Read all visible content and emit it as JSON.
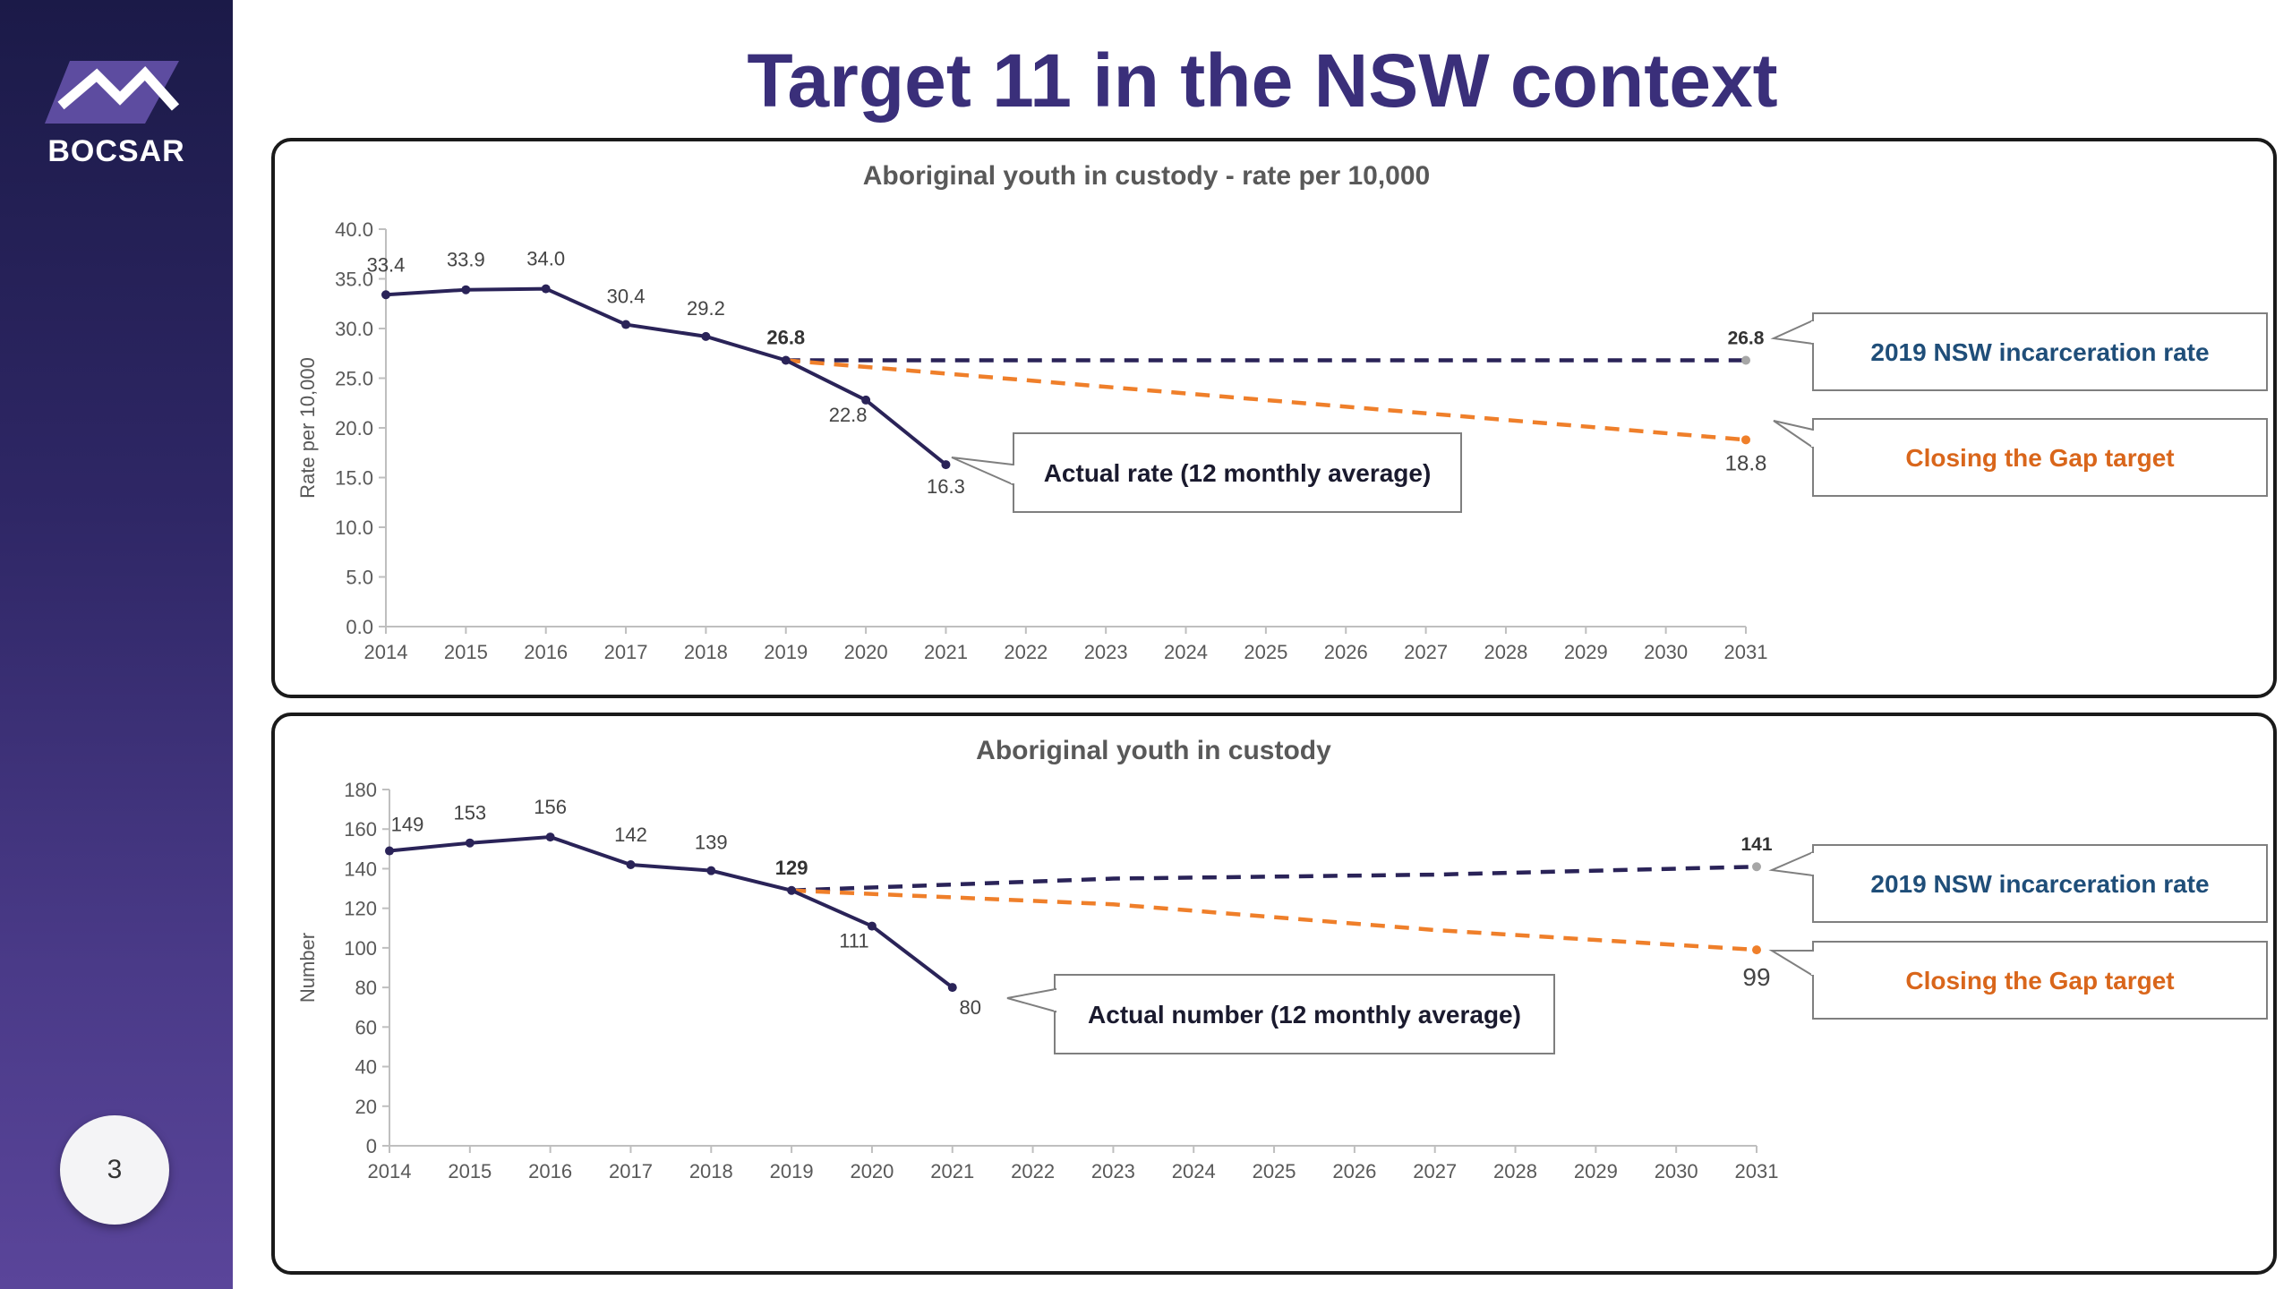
{
  "sidebar": {
    "logo_text": "BOCSAR",
    "page_number": "3"
  },
  "page_title": "Target 11 in the NSW context",
  "colors": {
    "actual": "#2a2358",
    "rate_2019": "#2a2358",
    "target": "#ef7f2a",
    "title": "#3a2f7a",
    "callout_blue": "#1f4e79",
    "callout_orange": "#d9661b"
  },
  "chart_data": [
    {
      "type": "line",
      "title": "Aboriginal youth in custody - rate per 10,000",
      "xlabel": "",
      "ylabel": "Rate per 10,000",
      "ylim": [
        0,
        40
      ],
      "yticks": [
        "0.0",
        "5.0",
        "10.0",
        "15.0",
        "20.0",
        "25.0",
        "30.0",
        "35.0",
        "40.0"
      ],
      "x": [
        2014,
        2015,
        2016,
        2017,
        2018,
        2019,
        2020,
        2021,
        2022,
        2023,
        2024,
        2025,
        2026,
        2027,
        2028,
        2029,
        2030,
        2031
      ],
      "series": [
        {
          "name": "Actual rate (12 monthly average)",
          "style": "solid",
          "points": [
            [
              2014,
              33.4
            ],
            [
              2015,
              33.9
            ],
            [
              2016,
              34.0
            ],
            [
              2017,
              30.4
            ],
            [
              2018,
              29.2
            ],
            [
              2019,
              26.8
            ],
            [
              2020,
              22.8
            ],
            [
              2021,
              16.3
            ]
          ],
          "labels": [
            "33.4",
            "33.9",
            "34.0",
            "30.4",
            "29.2",
            "26.8",
            "22.8",
            "16.3"
          ]
        },
        {
          "name": "2019 NSW incarceration rate",
          "style": "dashed",
          "points": [
            [
              2019,
              26.8
            ],
            [
              2031,
              26.8
            ]
          ],
          "end_label": "26.8"
        },
        {
          "name": "Closing the Gap target",
          "style": "dashed",
          "points": [
            [
              2019,
              26.8
            ],
            [
              2031,
              18.8
            ]
          ],
          "end_label": "18.8"
        }
      ],
      "callouts": {
        "actual": "Actual rate (12 monthly average)",
        "nsw": "2019 NSW incarceration rate",
        "target": "Closing the Gap target"
      }
    },
    {
      "type": "line",
      "title": "Aboriginal youth in custody",
      "xlabel": "",
      "ylabel": "Number",
      "ylim": [
        0,
        180
      ],
      "yticks": [
        "0",
        "20",
        "40",
        "60",
        "80",
        "100",
        "120",
        "140",
        "160",
        "180"
      ],
      "x": [
        2014,
        2015,
        2016,
        2017,
        2018,
        2019,
        2020,
        2021,
        2022,
        2023,
        2024,
        2025,
        2026,
        2027,
        2028,
        2029,
        2030,
        2031
      ],
      "series": [
        {
          "name": "Actual number (12 monthly average)",
          "style": "solid",
          "points": [
            [
              2014,
              149
            ],
            [
              2015,
              153
            ],
            [
              2016,
              156
            ],
            [
              2017,
              142
            ],
            [
              2018,
              139
            ],
            [
              2019,
              129
            ],
            [
              2020,
              111
            ],
            [
              2021,
              80
            ]
          ],
          "labels": [
            "149",
            "153",
            "156",
            "142",
            "139",
            "129",
            "111",
            "80"
          ]
        },
        {
          "name": "2019 NSW incarceration rate",
          "style": "dashed",
          "points": [
            [
              2019,
              129
            ],
            [
              2023,
              135
            ],
            [
              2027,
              137
            ],
            [
              2031,
              141
            ]
          ],
          "end_label": "141"
        },
        {
          "name": "Closing the Gap target",
          "style": "dashed",
          "points": [
            [
              2019,
              129
            ],
            [
              2023,
              122
            ],
            [
              2027,
              109
            ],
            [
              2031,
              99
            ]
          ],
          "end_label": "99"
        }
      ],
      "callouts": {
        "actual": "Actual number (12 monthly average)",
        "nsw": "2019 NSW incarceration rate",
        "target": "Closing the Gap target"
      }
    }
  ]
}
